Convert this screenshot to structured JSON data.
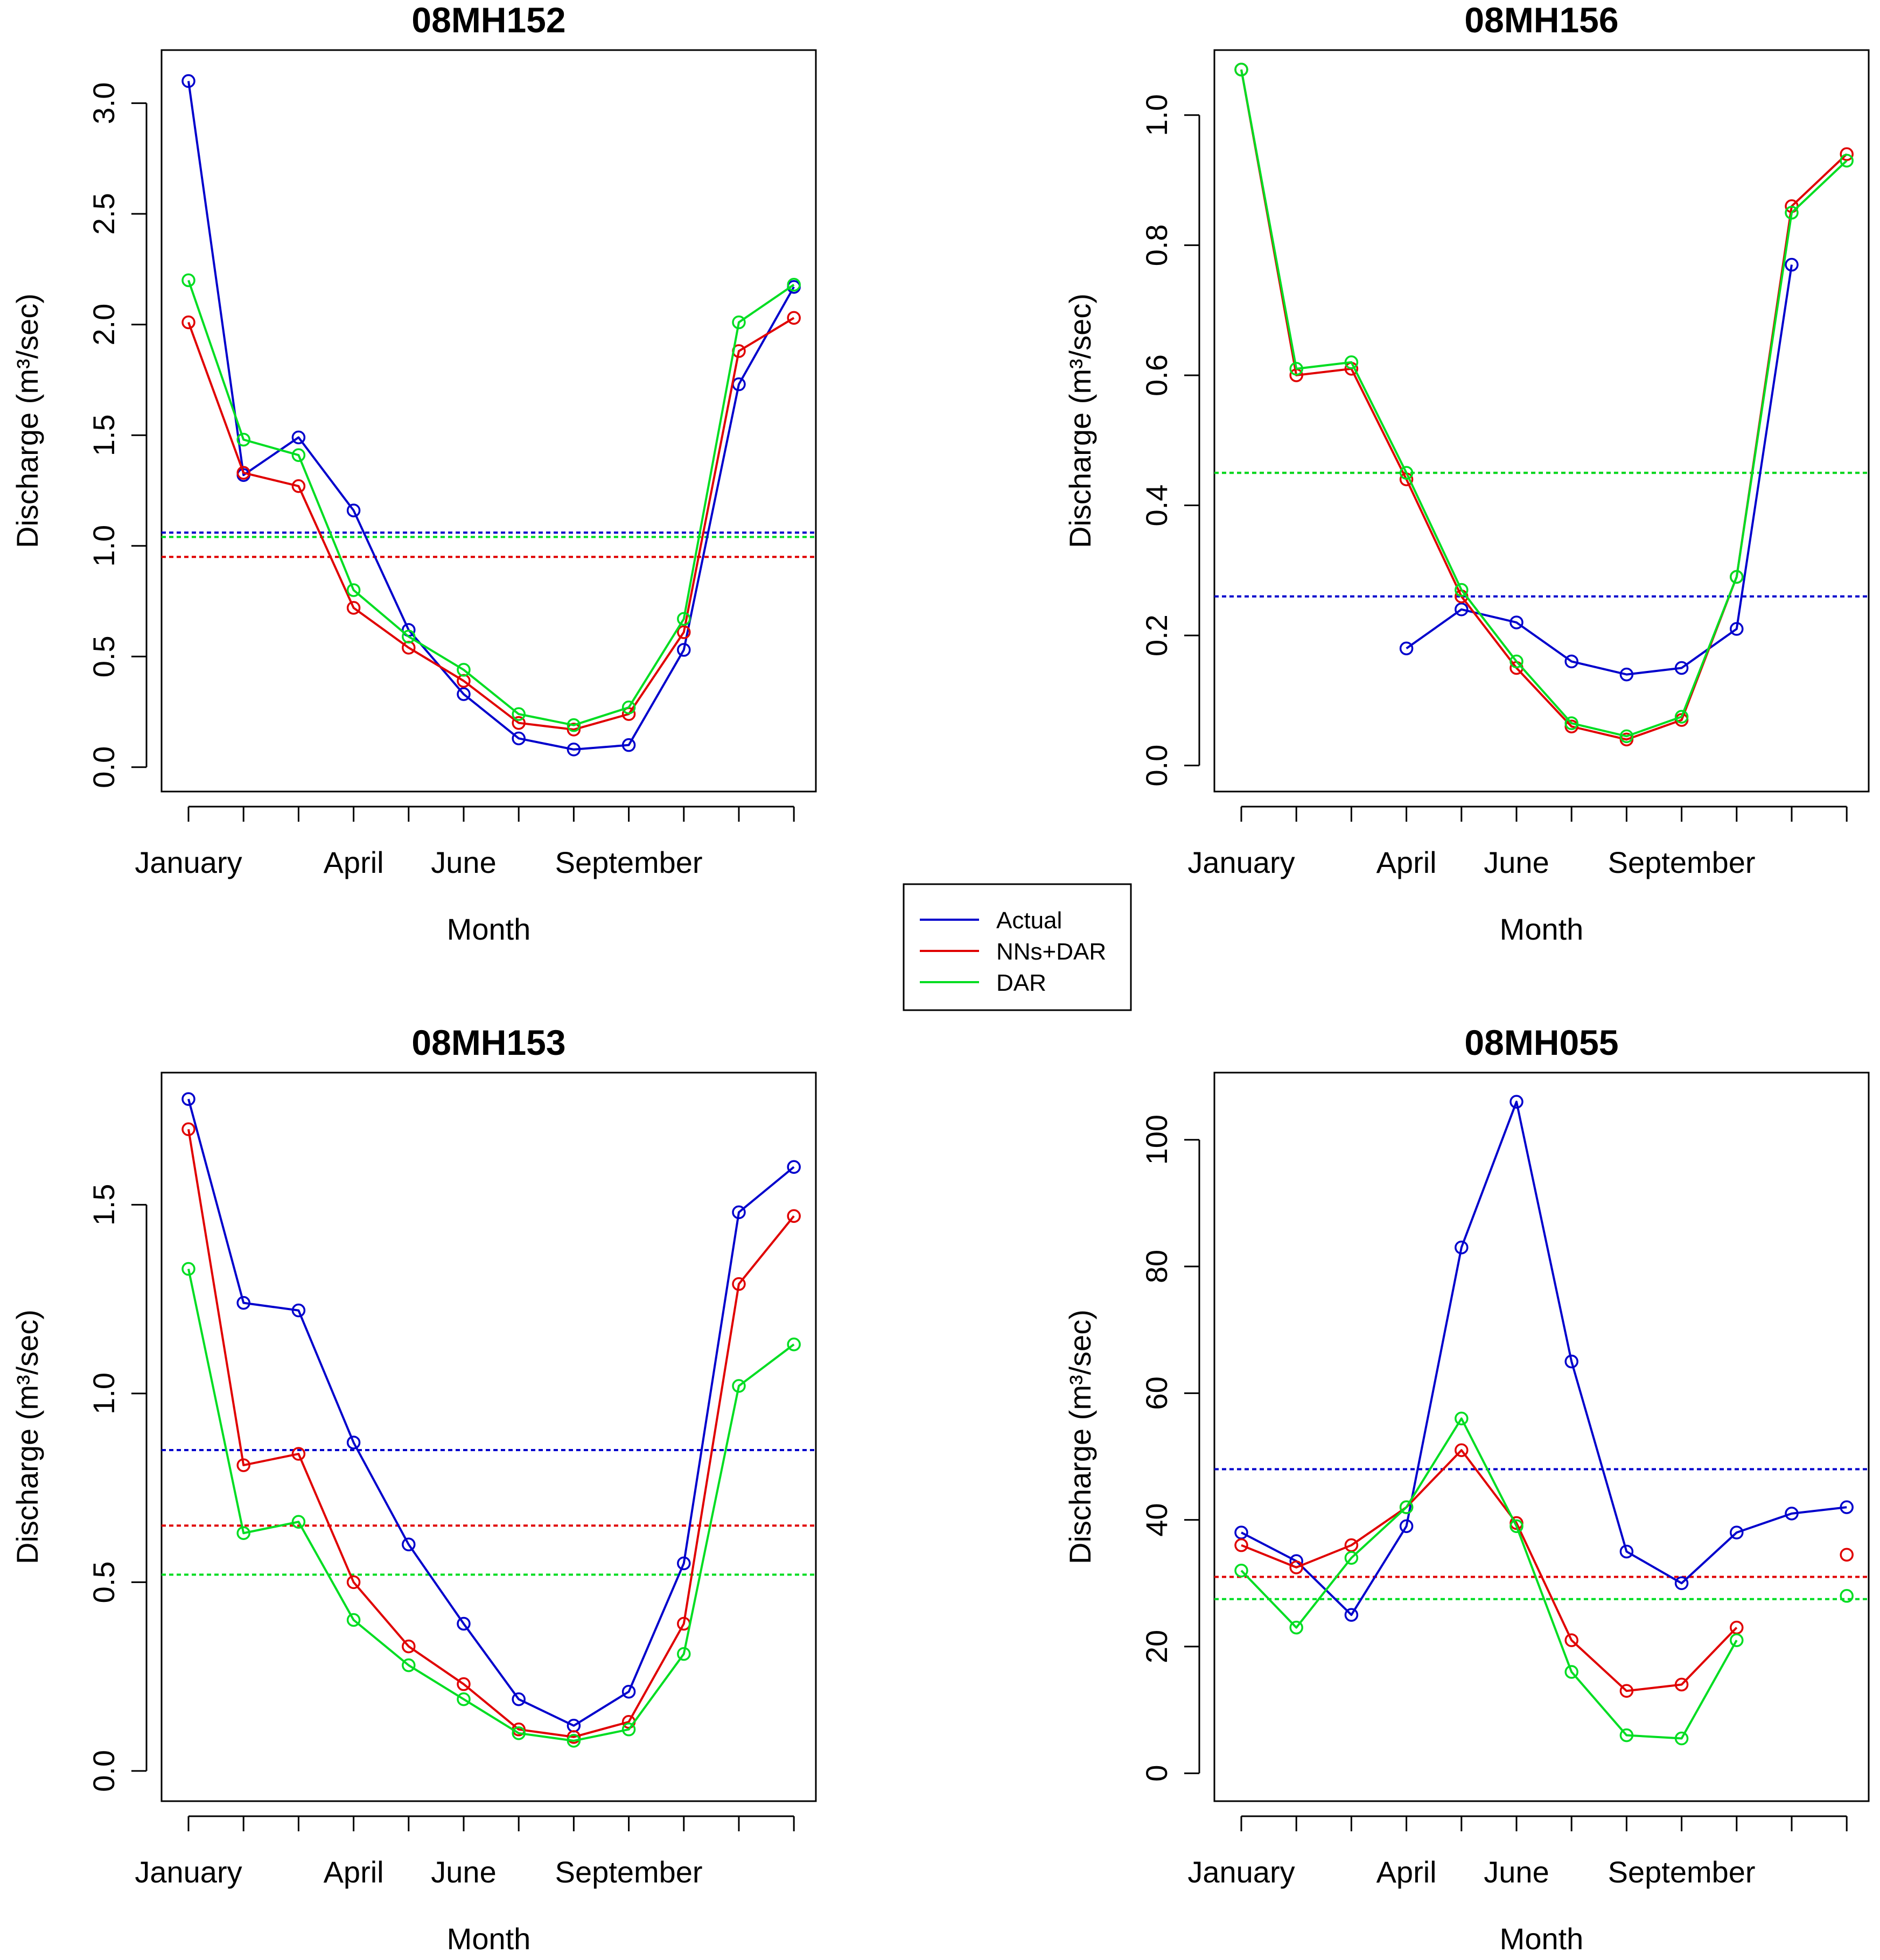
{
  "figure": {
    "legend": {
      "position": "center",
      "entries": [
        {
          "label": "Actual",
          "color": "#0000cc"
        },
        {
          "label": "NNs+DAR",
          "color": "#e00000"
        },
        {
          "label": "DAR",
          "color": "#00dd22"
        }
      ]
    }
  },
  "chart_data": [
    {
      "type": "line",
      "title": "08MH152",
      "xlabel": "Month",
      "ylabel": "Discharge (m³/sec)",
      "ylim": [
        -0.11,
        3.24
      ],
      "yticks": [
        0.0,
        0.5,
        1.0,
        1.5,
        2.0,
        2.5,
        3.0
      ],
      "ytick_labels": [
        "0.0",
        "0.5",
        "1.0",
        "1.5",
        "2.0",
        "2.5",
        "3.0"
      ],
      "x": [
        1,
        2,
        3,
        4,
        5,
        6,
        7,
        8,
        9,
        10,
        11,
        12
      ],
      "xtick_labels": [
        {
          "x": 1,
          "label": "January"
        },
        {
          "x": 4,
          "label": "April"
        },
        {
          "x": 6,
          "label": "June"
        },
        {
          "x": 9,
          "label": "September"
        }
      ],
      "series": [
        {
          "name": "Actual",
          "color": "#0000cc",
          "values": [
            3.1,
            1.32,
            1.49,
            1.16,
            0.62,
            0.33,
            0.13,
            0.08,
            0.1,
            0.53,
            1.73,
            2.17
          ],
          "mean": 1.06
        },
        {
          "name": "NNs+DAR",
          "color": "#e00000",
          "values": [
            2.01,
            1.33,
            1.27,
            0.72,
            0.54,
            0.39,
            0.2,
            0.17,
            0.24,
            0.61,
            1.88,
            2.03
          ],
          "mean": 0.95
        },
        {
          "name": "DAR",
          "color": "#00dd22",
          "values": [
            2.2,
            1.48,
            1.41,
            0.8,
            0.59,
            0.44,
            0.24,
            0.19,
            0.27,
            0.67,
            2.01,
            2.18
          ],
          "mean": 1.04
        }
      ]
    },
    {
      "type": "line",
      "title": "08MH156",
      "xlabel": "Month",
      "ylabel": "Discharge (m³/sec)",
      "ylim": [
        -0.04,
        1.1
      ],
      "yticks": [
        0.0,
        0.2,
        0.4,
        0.6,
        0.8,
        1.0
      ],
      "ytick_labels": [
        "0.0",
        "0.2",
        "0.4",
        "0.6",
        "0.8",
        "1.0"
      ],
      "x": [
        1,
        2,
        3,
        4,
        5,
        6,
        7,
        8,
        9,
        10,
        11,
        12
      ],
      "xtick_labels": [
        {
          "x": 1,
          "label": "January"
        },
        {
          "x": 4,
          "label": "April"
        },
        {
          "x": 6,
          "label": "June"
        },
        {
          "x": 9,
          "label": "September"
        }
      ],
      "series": [
        {
          "name": "Actual",
          "color": "#0000cc",
          "values": [
            null,
            null,
            null,
            0.18,
            0.24,
            0.22,
            0.16,
            0.14,
            0.15,
            0.21,
            0.77,
            null
          ],
          "mean": 0.26
        },
        {
          "name": "NNs+DAR",
          "color": "#e00000",
          "values": [
            1.07,
            0.6,
            0.61,
            0.44,
            0.26,
            0.15,
            0.06,
            0.04,
            0.07,
            0.29,
            0.86,
            0.94
          ],
          "mean": 0.45
        },
        {
          "name": "DAR",
          "color": "#00dd22",
          "values": [
            1.07,
            0.61,
            0.62,
            0.45,
            0.27,
            0.16,
            0.065,
            0.045,
            0.075,
            0.29,
            0.85,
            0.93
          ],
          "mean": 0.45
        }
      ]
    },
    {
      "type": "line",
      "title": "08MH153",
      "xlabel": "Month",
      "ylabel": "Discharge (m³/sec)",
      "ylim": [
        -0.08,
        1.85
      ],
      "yticks": [
        0.0,
        0.5,
        1.0,
        1.5
      ],
      "ytick_labels": [
        "0.0",
        "0.5",
        "1.0",
        "1.5"
      ],
      "x": [
        1,
        2,
        3,
        4,
        5,
        6,
        7,
        8,
        9,
        10,
        11,
        12
      ],
      "xtick_labels": [
        {
          "x": 1,
          "label": "January"
        },
        {
          "x": 4,
          "label": "April"
        },
        {
          "x": 6,
          "label": "June"
        },
        {
          "x": 9,
          "label": "September"
        }
      ],
      "series": [
        {
          "name": "Actual",
          "color": "#0000cc",
          "values": [
            1.78,
            1.24,
            1.22,
            0.87,
            0.6,
            0.39,
            0.19,
            0.12,
            0.21,
            0.55,
            1.48,
            1.6
          ],
          "mean": 0.85
        },
        {
          "name": "NNs+DAR",
          "color": "#e00000",
          "values": [
            1.7,
            0.81,
            0.84,
            0.5,
            0.33,
            0.23,
            0.11,
            0.09,
            0.13,
            0.39,
            1.29,
            1.47
          ],
          "mean": 0.65
        },
        {
          "name": "DAR",
          "color": "#00dd22",
          "values": [
            1.33,
            0.63,
            0.66,
            0.4,
            0.28,
            0.19,
            0.1,
            0.08,
            0.11,
            0.31,
            1.02,
            1.13
          ],
          "mean": 0.52
        }
      ]
    },
    {
      "type": "line",
      "title": "08MH055",
      "xlabel": "Month",
      "ylabel": "Discharge (m³/sec)",
      "ylim": [
        -4.4,
        110.6
      ],
      "yticks": [
        0,
        20,
        40,
        60,
        80,
        100
      ],
      "ytick_labels": [
        "0",
        "20",
        "40",
        "60",
        "80",
        "100"
      ],
      "x": [
        1,
        2,
        3,
        4,
        5,
        6,
        7,
        8,
        9,
        10,
        11,
        12
      ],
      "xtick_labels": [
        {
          "x": 1,
          "label": "January"
        },
        {
          "x": 4,
          "label": "April"
        },
        {
          "x": 6,
          "label": "June"
        },
        {
          "x": 9,
          "label": "September"
        }
      ],
      "series": [
        {
          "name": "Actual",
          "color": "#0000cc",
          "values": [
            38,
            33.5,
            25,
            39,
            83,
            106,
            65,
            35,
            30,
            38,
            41,
            42
          ],
          "mean": 48
        },
        {
          "name": "NNs+DAR",
          "color": "#e00000",
          "values": [
            36,
            32.5,
            36,
            42,
            51,
            39.5,
            21,
            13,
            14,
            23,
            null,
            34.5
          ],
          "mean": 31
        },
        {
          "name": "DAR",
          "color": "#00dd22",
          "values": [
            32,
            23,
            34,
            42,
            56,
            39,
            16,
            6,
            5.5,
            21,
            null,
            28
          ],
          "mean": 27.5
        }
      ]
    }
  ]
}
